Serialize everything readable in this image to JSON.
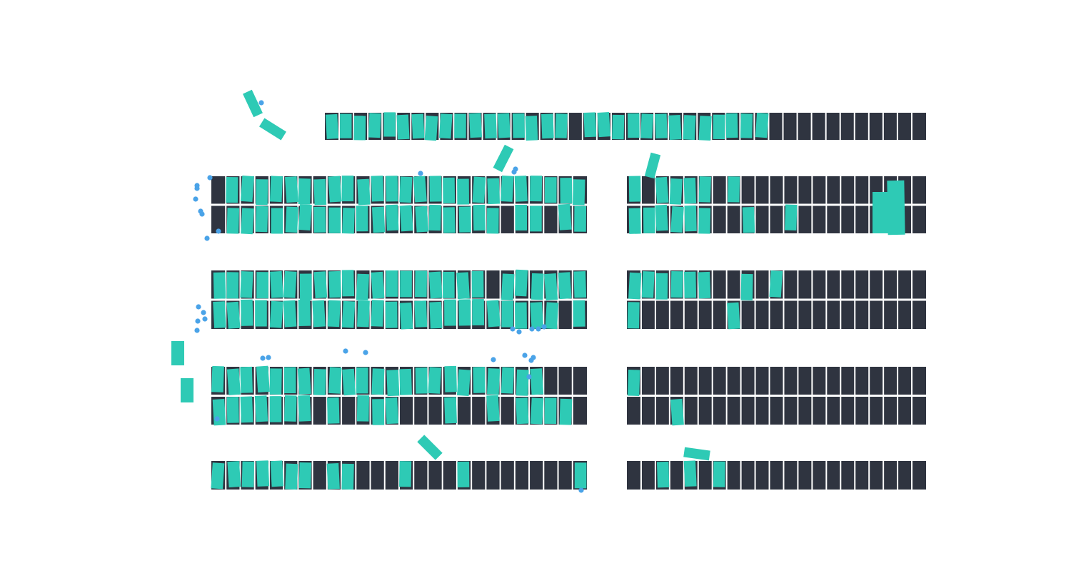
{
  "scene": "parking-lot-diagram",
  "colors": {
    "background": "#ffffff",
    "stall": "#2f3440",
    "stall_line": "#ffffff",
    "car": "#2ecab5",
    "person": "#4aa3e8"
  },
  "rows": [
    {
      "id": "row-top",
      "stalls": 42
    },
    {
      "id": "row-2-left",
      "stalls": 26
    },
    {
      "id": "row-2-right",
      "stalls": 21
    },
    {
      "id": "row-3-left",
      "stalls": 26
    },
    {
      "id": "row-3-right",
      "stalls": 21
    },
    {
      "id": "row-4-left",
      "stalls": 26
    },
    {
      "id": "row-4-right",
      "stalls": 21
    },
    {
      "id": "row-5-left",
      "stalls": 26
    },
    {
      "id": "row-5-right",
      "stalls": 21
    }
  ]
}
